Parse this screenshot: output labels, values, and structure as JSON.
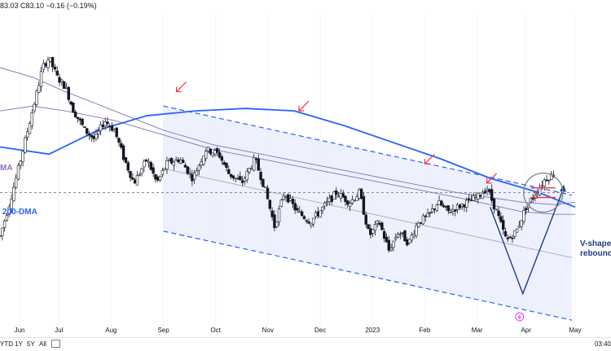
{
  "header": {
    "ohlc_text": "83.03  C83.10  −0.16 (−0.19%)"
  },
  "annotations": {
    "ma_left": "MA",
    "dma200": "200-DMA",
    "vshape_line1": "V-shape",
    "vshape_line2": "rebound"
  },
  "range_buttons": [
    "YTD",
    "1Y",
    "5Y",
    "All"
  ],
  "clock": "03:40",
  "colors": {
    "up": "#ffffff",
    "down": "#131722",
    "wick": "#131722",
    "dma200": "#2962ff",
    "ma_purple": "#8b6fb5",
    "channel": "#2962ff",
    "channel_fill": "#e8eefc",
    "arrow_red": "#f23645",
    "annotation_blue": "#1e3a8a",
    "circle": "#8a8a8a"
  },
  "chart_data": {
    "type": "candlestick",
    "x_ticks": [
      "Jun",
      "Jul",
      "Aug",
      "Sep",
      "Oct",
      "Nov",
      "Dec",
      "2023",
      "Feb",
      "Mar",
      "Apr",
      "May"
    ],
    "anchors": [
      [
        0,
        8
      ],
      [
        6,
        22
      ],
      [
        12,
        38
      ],
      [
        18,
        55
      ],
      [
        22,
        66
      ],
      [
        26,
        78
      ],
      [
        30,
        82
      ],
      [
        35,
        74
      ],
      [
        40,
        70
      ],
      [
        45,
        60
      ],
      [
        52,
        52
      ],
      [
        58,
        48
      ],
      [
        64,
        56
      ],
      [
        70,
        52
      ],
      [
        76,
        40
      ],
      [
        82,
        30
      ],
      [
        90,
        40
      ],
      [
        96,
        30
      ],
      [
        102,
        38
      ],
      [
        110,
        40
      ],
      [
        118,
        32
      ],
      [
        126,
        44
      ],
      [
        134,
        42
      ],
      [
        140,
        34
      ],
      [
        148,
        30
      ],
      [
        156,
        40
      ],
      [
        162,
        28
      ],
      [
        168,
        12
      ],
      [
        174,
        26
      ],
      [
        182,
        18
      ],
      [
        190,
        14
      ],
      [
        198,
        20
      ],
      [
        206,
        26
      ],
      [
        214,
        22
      ],
      [
        220,
        26
      ],
      [
        226,
        8
      ],
      [
        232,
        14
      ],
      [
        238,
        2
      ],
      [
        244,
        10
      ],
      [
        250,
        5
      ],
      [
        256,
        14
      ],
      [
        262,
        16
      ],
      [
        268,
        22
      ],
      [
        274,
        18
      ],
      [
        280,
        20
      ],
      [
        286,
        22
      ],
      [
        292,
        24
      ],
      [
        298,
        28
      ],
      [
        304,
        18
      ],
      [
        310,
        6
      ],
      [
        316,
        10
      ],
      [
        322,
        20
      ],
      [
        328,
        26
      ],
      [
        334,
        32
      ],
      [
        340,
        34
      ]
    ],
    "dma200": [
      [
        0,
        45
      ],
      [
        30,
        42
      ],
      [
        60,
        52
      ],
      [
        90,
        58
      ],
      [
        120,
        60
      ],
      [
        150,
        61
      ],
      [
        180,
        60
      ],
      [
        210,
        54
      ],
      [
        240,
        47
      ],
      [
        270,
        40
      ],
      [
        300,
        32
      ],
      [
        330,
        26
      ],
      [
        352,
        20
      ]
    ],
    "ma_purple_upper": [
      [
        0,
        78
      ],
      [
        20,
        74
      ],
      [
        40,
        68
      ],
      [
        70,
        60
      ],
      [
        100,
        52
      ],
      [
        130,
        46
      ],
      [
        160,
        42
      ],
      [
        190,
        38
      ],
      [
        220,
        34
      ],
      [
        250,
        30
      ],
      [
        280,
        26
      ],
      [
        300,
        24
      ],
      [
        320,
        22
      ],
      [
        340,
        21
      ],
      [
        352,
        22
      ]
    ],
    "ma_purple_lower": [
      [
        0,
        60
      ],
      [
        20,
        62
      ],
      [
        40,
        60
      ],
      [
        70,
        56
      ],
      [
        100,
        50
      ],
      [
        130,
        44
      ],
      [
        160,
        40
      ],
      [
        190,
        36
      ],
      [
        220,
        32
      ],
      [
        250,
        28
      ],
      [
        280,
        24
      ],
      [
        300,
        21
      ],
      [
        320,
        18
      ],
      [
        340,
        17
      ],
      [
        352,
        17
      ]
    ],
    "channel_upper": [
      [
        100,
        62
      ],
      [
        350,
        25
      ]
    ],
    "channel_lower": [
      [
        100,
        10
      ],
      [
        350,
        -27
      ]
    ],
    "channel_mid": [
      [
        100,
        36
      ],
      [
        350,
        -1
      ]
    ],
    "horizontal_level": 26,
    "y_range": [
      -30,
      100
    ],
    "x_range": [
      0,
      360
    ],
    "v_shape": [
      [
        300,
        20
      ],
      [
        320,
        -16
      ],
      [
        345,
        28
      ]
    ],
    "red_arrows": [
      [
        108,
        68
      ],
      [
        183,
        60
      ],
      [
        260,
        38
      ],
      [
        298,
        30
      ]
    ],
    "consolidation": [
      325,
      330,
      340,
      24,
      28
    ]
  }
}
